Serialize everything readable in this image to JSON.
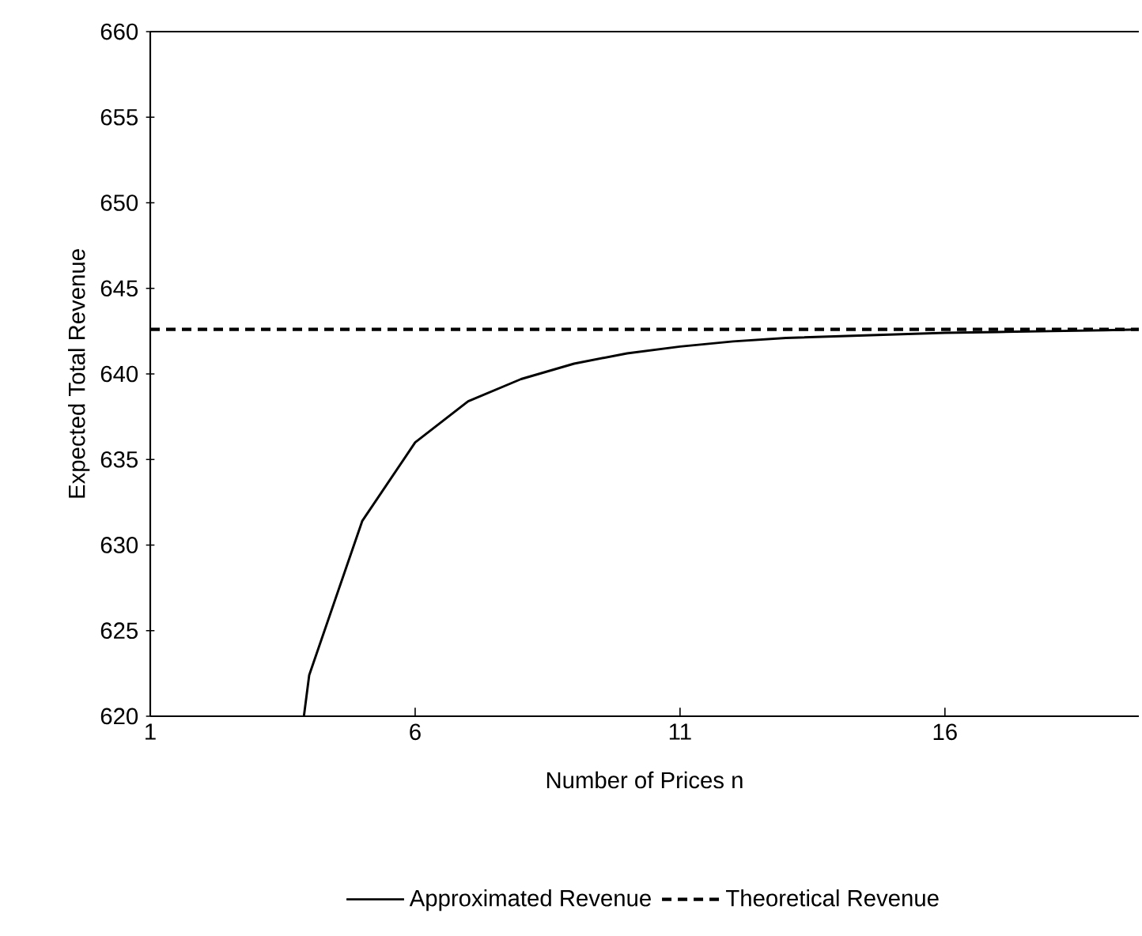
{
  "chart_data": {
    "type": "line",
    "xlabel": "Number of Prices n",
    "ylabel": "Expected Total Revenue",
    "xlim": [
      1,
      19.66
    ],
    "ylim": [
      620,
      660
    ],
    "xticks": [
      1,
      6,
      11,
      16
    ],
    "yticks": [
      620,
      625,
      630,
      635,
      640,
      645,
      650,
      655,
      660
    ],
    "grid": false,
    "legend": "bottom",
    "marker": "none",
    "series": [
      {
        "name": "Approximated Revenue",
        "color": "#000000",
        "line_style": "solid",
        "x": [
          3.9,
          4,
          5,
          6,
          7,
          8,
          9,
          10,
          11,
          12,
          13,
          14,
          15,
          16,
          17,
          18,
          19,
          19.66
        ],
        "values": [
          620,
          622.4,
          631.4,
          636.0,
          638.4,
          639.7,
          640.6,
          641.2,
          641.6,
          641.9,
          642.1,
          642.2,
          642.3,
          642.4,
          642.45,
          642.5,
          642.55,
          642.6
        ]
      },
      {
        "name": "Theoretical Revenue",
        "color": "#000000",
        "line_style": "dashed",
        "x": [
          1,
          19.66
        ],
        "values": [
          642.6,
          642.6
        ]
      }
    ]
  }
}
